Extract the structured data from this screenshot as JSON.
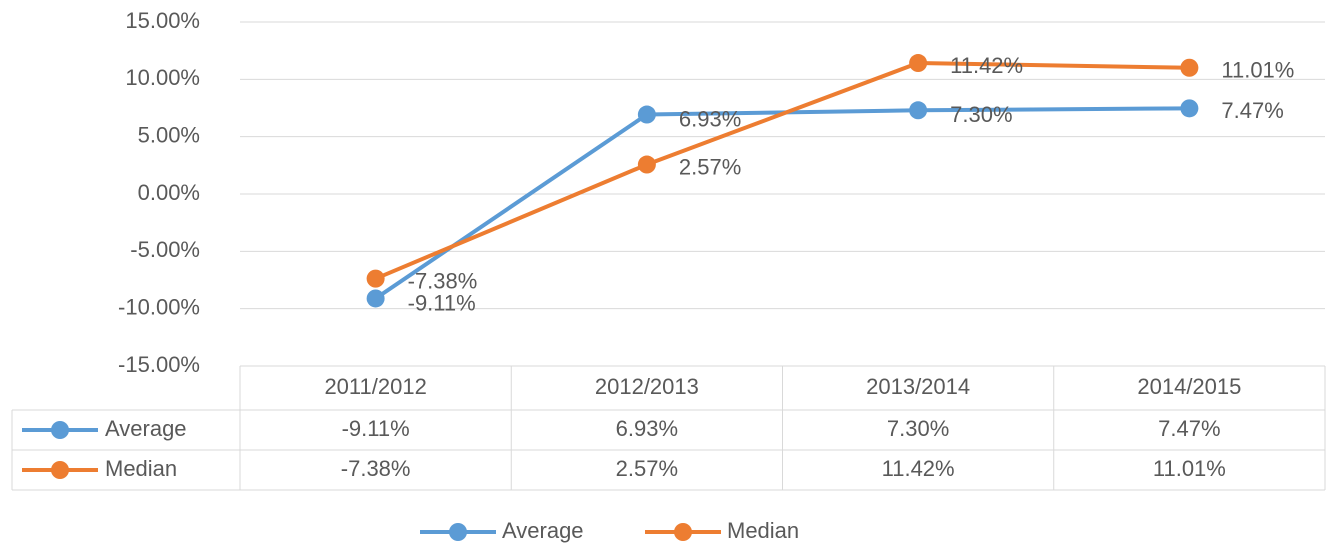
{
  "chart_data": {
    "type": "line",
    "categories": [
      "2011/2012",
      "2012/2013",
      "2013/2014",
      "2014/2015"
    ],
    "series": [
      {
        "name": "Average",
        "color": "#5b9bd5",
        "values": [
          -9.11,
          6.93,
          7.3,
          7.47
        ],
        "value_labels": [
          "-9.11%",
          "6.93%",
          "7.30%",
          "7.47%"
        ]
      },
      {
        "name": "Median",
        "color": "#ed7d31",
        "values": [
          -7.38,
          2.57,
          11.42,
          11.01
        ],
        "value_labels": [
          "-7.38%",
          "2.57%",
          "11.42%",
          "11.01%"
        ]
      }
    ],
    "ylim": [
      -15,
      15
    ],
    "yticks": [
      {
        "value": -15,
        "label": "-15.00%"
      },
      {
        "value": -10,
        "label": "-10.00%"
      },
      {
        "value": -5,
        "label": "-5.00%"
      },
      {
        "value": 0,
        "label": "0.00%"
      },
      {
        "value": 5,
        "label": "5.00%"
      },
      {
        "value": 10,
        "label": "10.00%"
      },
      {
        "value": 15,
        "label": "15.00%"
      }
    ],
    "grid": true,
    "legend": "bottom",
    "data_table": true
  }
}
